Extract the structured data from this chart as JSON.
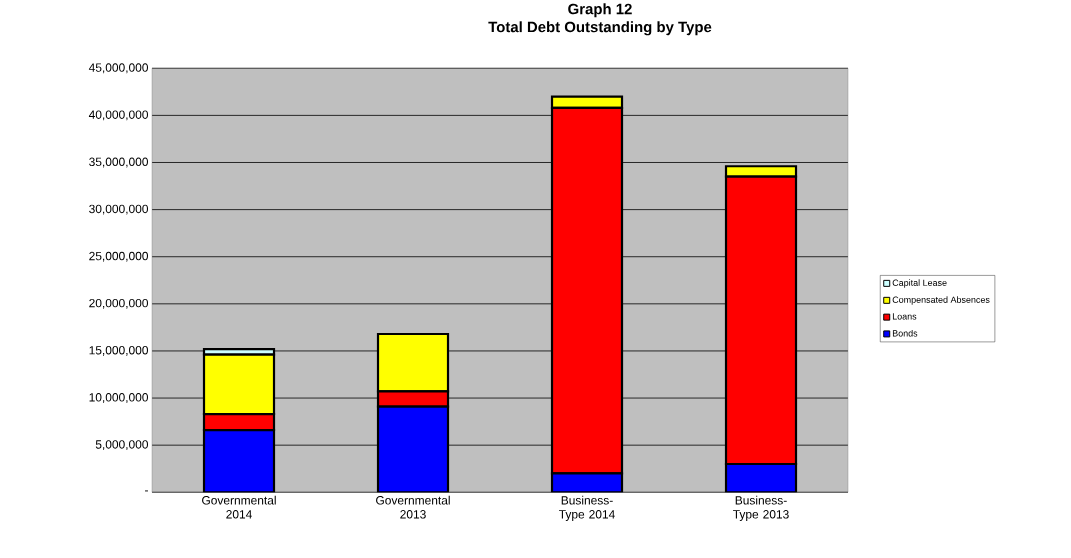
{
  "chart_data": {
    "type": "bar",
    "title": "Graph 12",
    "subtitle": "Total Debt Outstanding by Type",
    "stacked": true,
    "categories": [
      "Governmental 2014",
      "Governmental 2013",
      "Business-Type 2014",
      "Business-Type 2013"
    ],
    "series": [
      {
        "name": "Bonds",
        "color": "#0000ff",
        "values": [
          6600000,
          9100000,
          2000000,
          3000000
        ]
      },
      {
        "name": "Loans",
        "color": "#ff0000",
        "values": [
          1700000,
          1600000,
          38800000,
          30500000
        ]
      },
      {
        "name": "Compensated Absences",
        "color": "#ffff00",
        "values": [
          6300000,
          6100000,
          1200000,
          1100000
        ]
      },
      {
        "name": "Capital Lease",
        "color": "#ccffff",
        "values": [
          600000,
          null,
          0,
          0
        ]
      }
    ],
    "ylim": [
      0,
      45000000
    ],
    "yticks": [
      {
        "value": 0,
        "label": "-"
      },
      {
        "value": 5000000,
        "label": "5,000,000"
      },
      {
        "value": 10000000,
        "label": "10,000,000"
      },
      {
        "value": 15000000,
        "label": "15,000,000"
      },
      {
        "value": 20000000,
        "label": "20,000,000"
      },
      {
        "value": 25000000,
        "label": "25,000,000"
      },
      {
        "value": 30000000,
        "label": "30,000,000"
      },
      {
        "value": 35000000,
        "label": "35,000,000"
      },
      {
        "value": 40000000,
        "label": "40,000,000"
      },
      {
        "value": 45000000,
        "label": "45,000,000"
      }
    ],
    "grid": "y",
    "legend": "right"
  }
}
